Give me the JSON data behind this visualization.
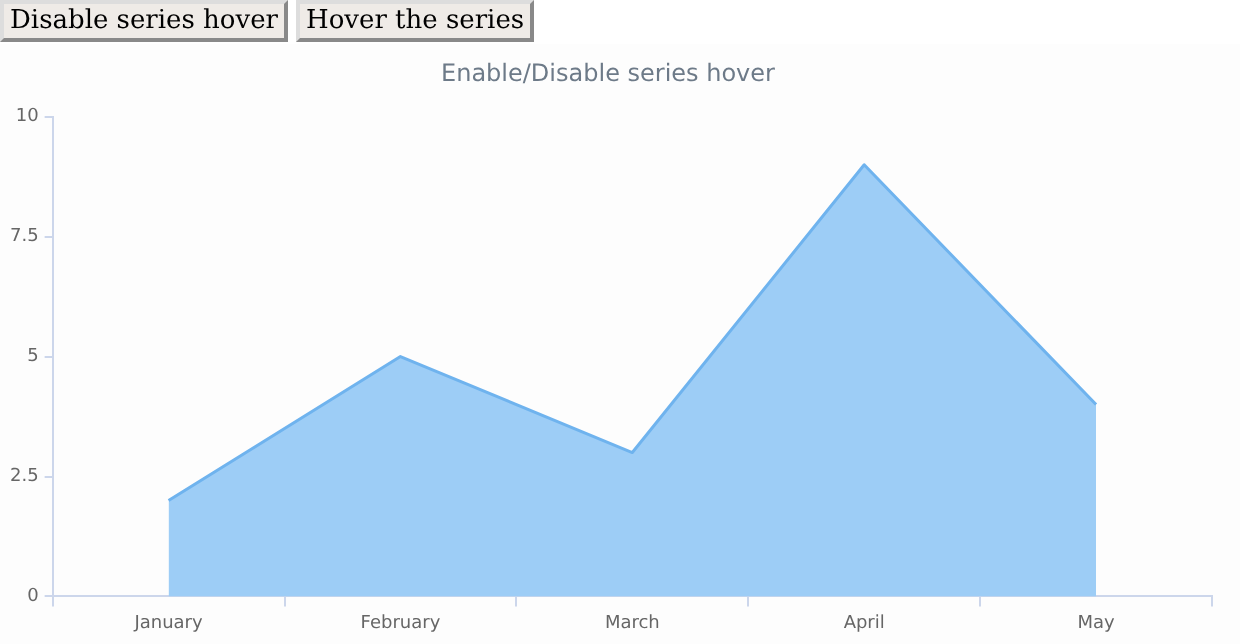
{
  "chart_data": {
    "type": "area",
    "title": "Enable/Disable series hover",
    "annotations": [
      "Disable series hover",
      "Hover the series"
    ],
    "categories": [
      "January",
      "February",
      "March",
      "April",
      "May"
    ],
    "series": [
      {
        "color": "#9dcdf6",
        "values": [
          2,
          5,
          3,
          9,
          4
        ]
      }
    ],
    "ylim": [
      0,
      10
    ],
    "yticks": [
      0,
      2.5,
      5,
      7.5,
      10
    ],
    "grid": false,
    "legend": false,
    "marker": "none",
    "line_style": "solid"
  }
}
